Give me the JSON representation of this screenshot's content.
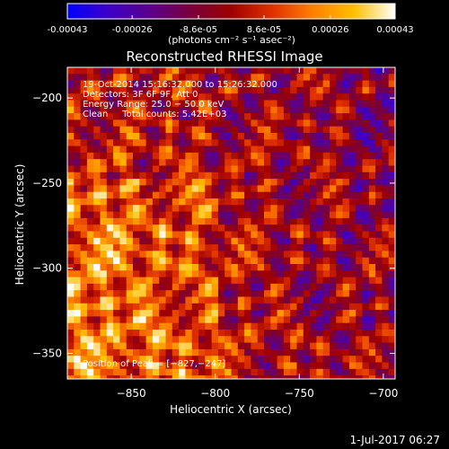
{
  "colorbar": {
    "tick_labels": [
      "-0.00043",
      "-0.00026",
      "-8.6e-05",
      "8.6e-05",
      "0.00026",
      "0.00043"
    ],
    "tick_values": [
      -0.00043,
      -0.00026,
      -8.6e-05,
      8.6e-05,
      0.00026,
      0.00043
    ],
    "range": [
      -0.00043,
      0.00043
    ],
    "units_label": "(photons cm⁻² s⁻¹ asec⁻²)",
    "colormap": [
      "#0000ff",
      "#3d00c8",
      "#5a008c",
      "#78003c",
      "#a00000",
      "#e03000",
      "#ff8000",
      "#ffc000",
      "#ffffff"
    ]
  },
  "chart_data": {
    "type": "heatmap",
    "title": "Reconstructed RHESSI Image",
    "xlabel": "Heliocentric X (arcsec)",
    "ylabel": "Heliocentric Y (arcsec)",
    "xlim": [
      -888,
      -693
    ],
    "ylim": [
      -365,
      -182
    ],
    "x_ticks": [
      -850,
      -800,
      -750,
      -700
    ],
    "y_ticks": [
      -350,
      -300,
      -250,
      -200
    ],
    "x_tick_labels": [
      "−850",
      "−800",
      "−750",
      "−700"
    ],
    "y_tick_labels": [
      "−350",
      "−300",
      "−250",
      "−200"
    ],
    "grid": false,
    "annotations": [
      "19-Oct-2014 15:16:32.000 to 15:26:32.000",
      "Detectors: 3F 6F 9F, Att 0",
      "Energy Range: 25.0 − 50.0 keV",
      "Clean     Total counts: 5.42E+03"
    ],
    "peak_label": "Position of Peak = [−827,−247]",
    "peak_position": [
      -827,
      -247
    ],
    "heatmap_summary": "bright emission concentrated along lower-left; blue/purple lows toward upper-right"
  },
  "footer": {
    "timestamp": "1-Jul-2017 06:27"
  }
}
